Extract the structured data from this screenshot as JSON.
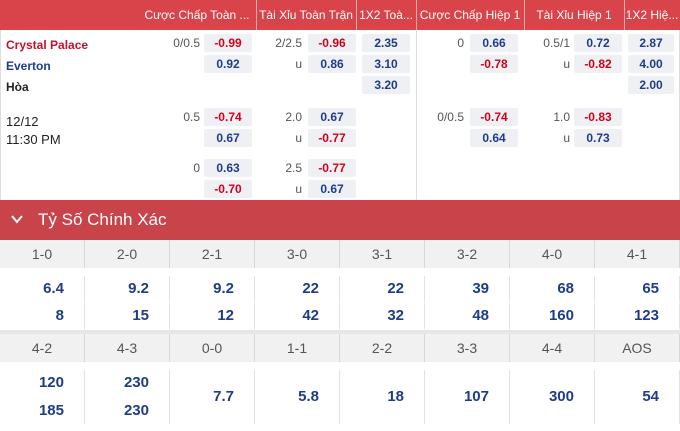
{
  "header": {
    "col_ft_handicap": "Cược Chấp Toàn ...",
    "col_ft_ou": "Tài Xỉu Toàn Trận",
    "col_ft_1x2": "1X2 Toà...",
    "col_h1_handicap": "Cược Chấp Hiệp 1",
    "col_h1_ou": "Tài Xỉu Hiệp 1",
    "col_h1_1x2": "1X2 Hiệ..."
  },
  "match": {
    "home": "Crystal Palace",
    "away": "Everton",
    "draw": "Hòa",
    "date": "12/12",
    "time": "11:30 PM"
  },
  "odds": {
    "r1": {
      "ft_hdp_line": "0/0.5",
      "ft_hdp_home": "-0.99",
      "ft_hdp_away": "0.92",
      "ft_ou_line": "2/2.5",
      "ft_ou_over": "-0.96",
      "ft_ou_u": "u",
      "ft_ou_under": "0.86",
      "ft_1x2_home": "2.35",
      "ft_1x2_away": "3.10",
      "ft_1x2_draw": "3.20",
      "h1_hdp_line": "0",
      "h1_hdp_home": "0.66",
      "h1_hdp_away": "-0.78",
      "h1_ou_line": "0.5/1",
      "h1_ou_over": "0.72",
      "h1_ou_u": "u",
      "h1_ou_under": "-0.82",
      "h1_1x2_home": "2.87",
      "h1_1x2_away": "4.00",
      "h1_1x2_draw": "2.00"
    },
    "r2": {
      "ft_hdp_line": "0.5",
      "ft_hdp_home": "-0.74",
      "ft_hdp_away": "0.67",
      "ft_ou_line": "2.0",
      "ft_ou_over": "0.67",
      "ft_ou_u": "u",
      "ft_ou_under": "-0.77",
      "h1_hdp_line": "0/0.5",
      "h1_hdp_home": "-0.74",
      "h1_hdp_away": "0.64",
      "h1_ou_line": "1.0",
      "h1_ou_over": "-0.83",
      "h1_ou_u": "u",
      "h1_ou_under": "0.73"
    },
    "r3": {
      "ft_hdp_line": "0",
      "ft_hdp_home": "0.63",
      "ft_hdp_away": "-0.70",
      "ft_ou_line": "2.5",
      "ft_ou_over": "-0.77",
      "ft_ou_u": "u",
      "ft_ou_under": "0.67"
    }
  },
  "correct_score": {
    "title": "Tỷ Số Chính Xác",
    "icon": "chevron-down-icon",
    "row1": {
      "labels": [
        "1-0",
        "2-0",
        "2-1",
        "3-0",
        "3-1",
        "3-2",
        "4-0",
        "4-1"
      ],
      "top": [
        "6.4",
        "9.2",
        "9.2",
        "22",
        "22",
        "39",
        "68",
        "65"
      ],
      "bottom": [
        "8",
        "15",
        "12",
        "42",
        "32",
        "48",
        "160",
        "123"
      ]
    },
    "row2": {
      "labels": [
        "4-2",
        "4-3",
        "0-0",
        "1-1",
        "2-2",
        "3-3",
        "4-4",
        "AOS"
      ],
      "top": [
        "120",
        "230",
        "",
        "",
        "",
        "",
        "",
        ""
      ],
      "mid": [
        "",
        "",
        "7.7",
        "5.8",
        "18",
        "107",
        "300",
        "54"
      ],
      "bottom": [
        "185",
        "230",
        "",
        "",
        "",
        "",
        "",
        ""
      ]
    }
  },
  "colors": {
    "header_bg": "#d9434a",
    "negative": "#d0021b",
    "positive": "#1f3c88",
    "home_team": "#c8102e"
  }
}
